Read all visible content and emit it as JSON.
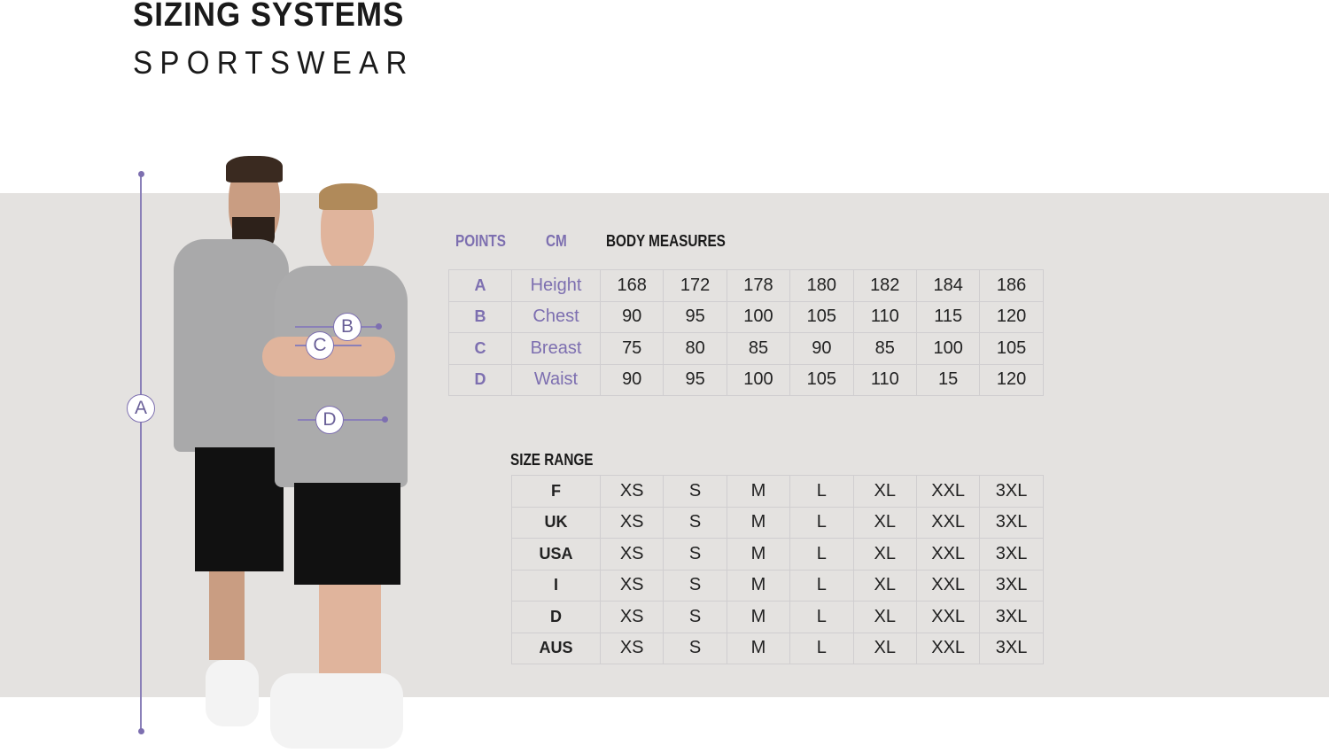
{
  "title": "SIZING SYSTEMS",
  "subtitle": "SPORTSWEAR",
  "accent_color": "#7d6fb0",
  "body_measures": {
    "headers": {
      "points": "POINTS",
      "unit": "CM",
      "title": "BODY MEASURES"
    },
    "rows": [
      {
        "point": "A",
        "label": "Height",
        "values": [
          "168",
          "172",
          "178",
          "180",
          "182",
          "184",
          "186"
        ]
      },
      {
        "point": "B",
        "label": "Chest",
        "values": [
          "90",
          "95",
          "100",
          "105",
          "110",
          "115",
          "120"
        ]
      },
      {
        "point": "C",
        "label": "Breast",
        "values": [
          "75",
          "80",
          "85",
          "90",
          "85",
          "100",
          "105"
        ]
      },
      {
        "point": "D",
        "label": "Waist",
        "values": [
          "90",
          "95",
          "100",
          "105",
          "110",
          "15",
          "120"
        ]
      }
    ]
  },
  "size_range": {
    "title": "SIZE RANGE",
    "rows": [
      {
        "system": "F",
        "values": [
          "XS",
          "S",
          "M",
          "L",
          "XL",
          "XXL",
          "3XL"
        ]
      },
      {
        "system": "UK",
        "values": [
          "XS",
          "S",
          "M",
          "L",
          "XL",
          "XXL",
          "3XL"
        ]
      },
      {
        "system": "USA",
        "values": [
          "XS",
          "S",
          "M",
          "L",
          "XL",
          "XXL",
          "3XL"
        ]
      },
      {
        "system": "I",
        "values": [
          "XS",
          "S",
          "M",
          "L",
          "XL",
          "XXL",
          "3XL"
        ]
      },
      {
        "system": "D",
        "values": [
          "XS",
          "S",
          "M",
          "L",
          "XL",
          "XXL",
          "3XL"
        ]
      },
      {
        "system": "AUS",
        "values": [
          "XS",
          "S",
          "M",
          "L",
          "XL",
          "XXL",
          "3XL"
        ]
      }
    ]
  },
  "markers": [
    "A",
    "B",
    "C",
    "D"
  ]
}
